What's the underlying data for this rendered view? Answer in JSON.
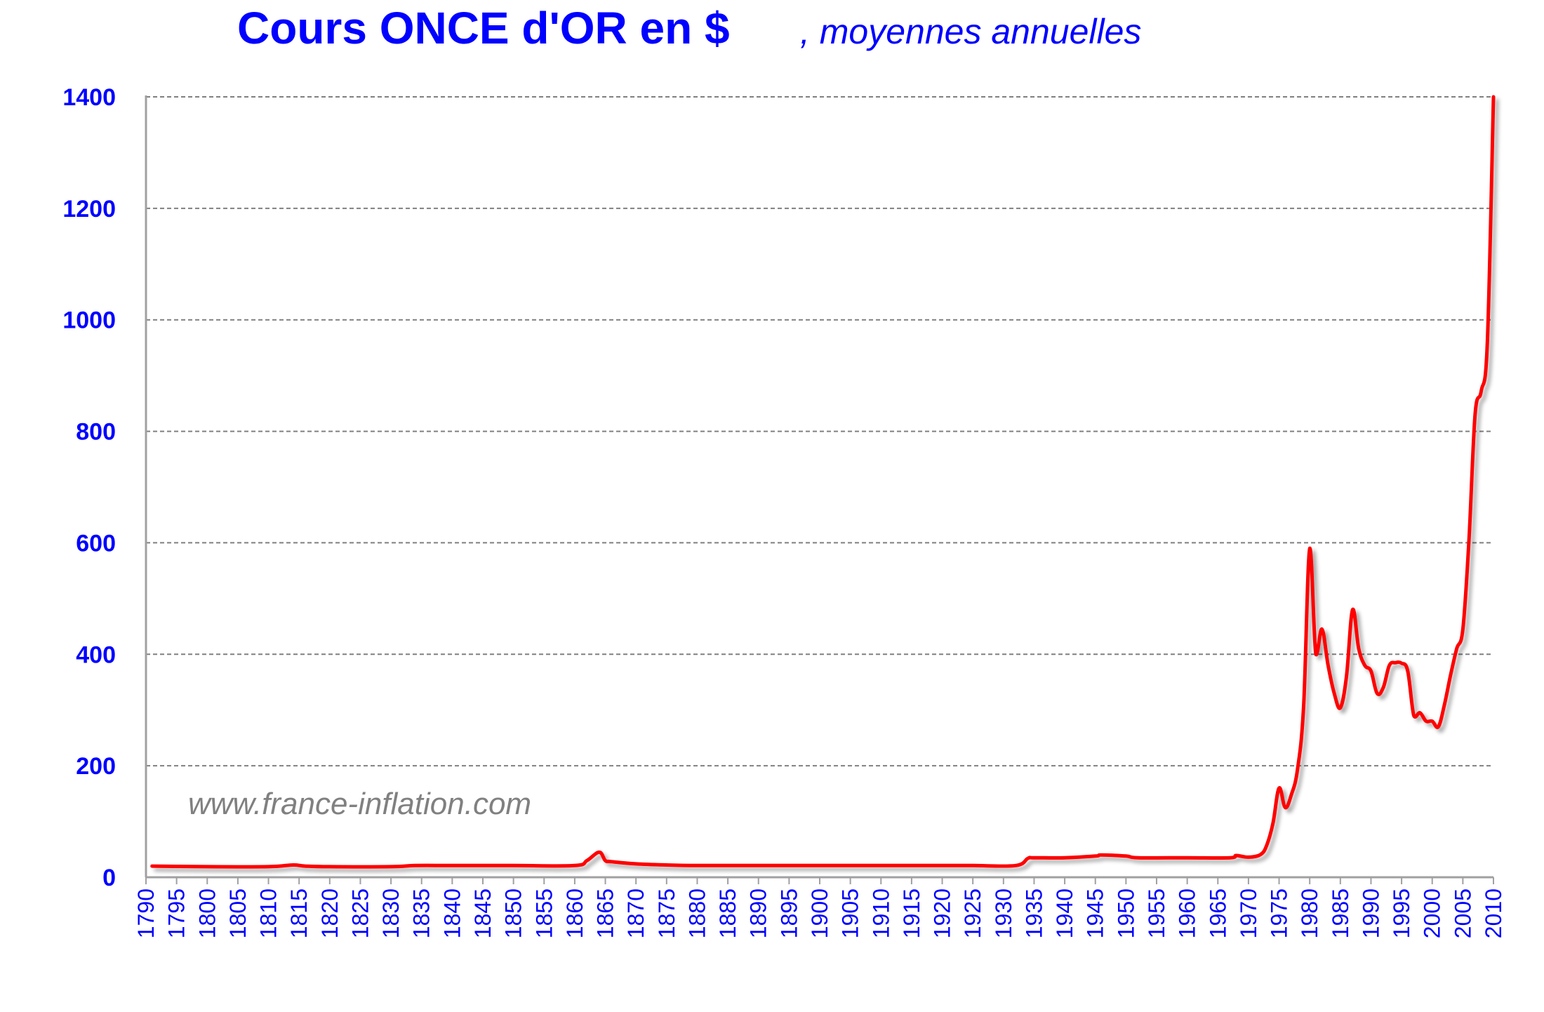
{
  "chart_data": {
    "type": "line",
    "title": "Cours ONCE d'OR en $",
    "subtitle": ", moyennes annuelles",
    "watermark": "www.france-inflation.com",
    "xlabel": "",
    "ylabel": "",
    "xlim": [
      1790,
      2010
    ],
    "ylim": [
      0,
      1400
    ],
    "y_ticks": [
      "0",
      "200",
      "400",
      "600",
      "800",
      "1000",
      "1200",
      "1400"
    ],
    "x_ticks": [
      "1790",
      "1795",
      "1800",
      "1805",
      "1810",
      "1815",
      "1820",
      "1825",
      "1830",
      "1835",
      "1840",
      "1845",
      "1850",
      "1855",
      "1860",
      "1865",
      "1870",
      "1875",
      "1880",
      "1885",
      "1890",
      "1895",
      "1900",
      "1905",
      "1910",
      "1915",
      "1920",
      "1925",
      "1930",
      "1935",
      "1940",
      "1945",
      "1950",
      "1955",
      "1960",
      "1965",
      "1970",
      "1975",
      "1980",
      "1985",
      "1990",
      "1995",
      "2000",
      "2005",
      "2010"
    ],
    "grid": true,
    "legend": "none",
    "colors": {
      "line": "#ff0000",
      "text": "#0000ff",
      "grid": "#808080",
      "axis": "#a0a0a0",
      "watermark": "#808080"
    },
    "series": [
      {
        "x": [
          1791,
          1800,
          1810,
          1814,
          1816,
          1820,
          1830,
          1834,
          1840,
          1850,
          1860,
          1862,
          1864,
          1865,
          1866,
          1870,
          1875,
          1880,
          1890,
          1900,
          1910,
          1920,
          1925,
          1932,
          1934,
          1935,
          1940,
          1945,
          1946,
          1950,
          1952,
          1960,
          1967,
          1968,
          1970,
          1972,
          1973,
          1974,
          1975,
          1976,
          1977,
          1978,
          1979,
          1980,
          1981,
          1982,
          1983,
          1984,
          1985,
          1986,
          1987,
          1988,
          1989,
          1990,
          1991,
          1992,
          1993,
          1994,
          1995,
          1996,
          1997,
          1998,
          1999,
          2000,
          2001,
          2002,
          2003,
          2004,
          2005,
          2006,
          2007,
          2008,
          2009,
          2010
        ],
        "y": [
          20,
          19,
          19,
          22,
          20,
          19,
          19,
          21,
          21,
          21,
          21,
          30,
          45,
          30,
          28,
          24,
          22,
          21,
          21,
          21,
          21,
          21,
          21,
          21,
          34,
          35,
          35,
          38,
          40,
          38,
          35,
          35,
          35,
          39,
          36,
          41,
          58,
          97,
          160,
          125,
          148,
          193,
          307,
          590,
          400,
          445,
          380,
          330,
          304,
          360,
          480,
          410,
          380,
          370,
          330,
          340,
          380,
          385,
          384,
          370,
          290,
          295,
          280,
          280,
          270,
          310,
          363,
          410,
          445,
          605,
          830,
          872,
          960,
          1400
        ]
      }
    ]
  }
}
